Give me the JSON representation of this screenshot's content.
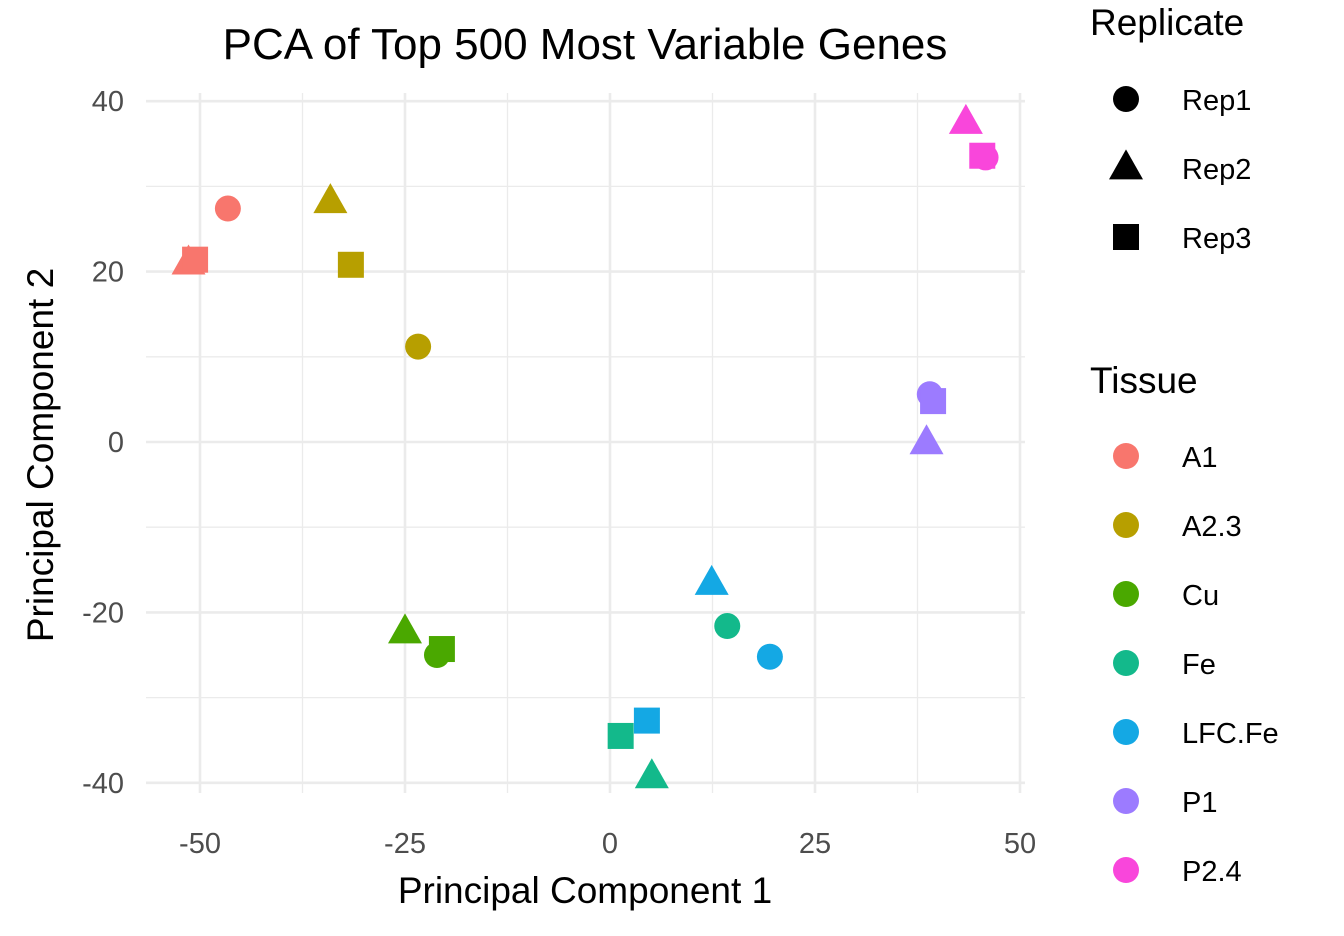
{
  "chart_data": {
    "type": "scatter",
    "title": "PCA of Top 500 Most Variable Genes",
    "xlabel": "Principal Component 1",
    "ylabel": "Principal Component 2",
    "xlim": [
      -56,
      50
    ],
    "ylim": [
      -41,
      41
    ],
    "x_ticks": [
      -50,
      -25,
      0,
      25,
      50
    ],
    "x_tick_labels": [
      "-50",
      "-25",
      "0",
      "25",
      "50"
    ],
    "y_ticks": [
      -40,
      -20,
      0,
      20,
      40
    ],
    "y_tick_labels": [
      "-40",
      "-20",
      "0",
      "20",
      "40"
    ],
    "grid": true,
    "legend_position": "right",
    "legends": {
      "shape": {
        "title": "Replicate",
        "entries": [
          {
            "label": "Rep1",
            "shape": "circle"
          },
          {
            "label": "Rep2",
            "shape": "triangle"
          },
          {
            "label": "Rep3",
            "shape": "square"
          }
        ]
      },
      "color": {
        "title": "Tissue",
        "entries": [
          {
            "label": "A1",
            "color": "#F8766D"
          },
          {
            "label": "A2.3",
            "color": "#B79F00"
          },
          {
            "label": "Cu",
            "color": "#4AA800"
          },
          {
            "label": "Fe",
            "color": "#13B98B"
          },
          {
            "label": "LFC.Fe",
            "color": "#14A8E4"
          },
          {
            "label": "P1",
            "color": "#9C7BFF"
          },
          {
            "label": "P2.4",
            "color": "#F946DB"
          }
        ]
      }
    },
    "points": [
      {
        "tissue": "A1",
        "replicate": "Rep1",
        "x": -46.6,
        "y": 27.4
      },
      {
        "tissue": "A1",
        "replicate": "Rep2",
        "x": -51.4,
        "y": 21.0
      },
      {
        "tissue": "A1",
        "replicate": "Rep3",
        "x": -50.6,
        "y": 21.4
      },
      {
        "tissue": "A2.3",
        "replicate": "Rep1",
        "x": -23.4,
        "y": 11.2
      },
      {
        "tissue": "A2.3",
        "replicate": "Rep2",
        "x": -34.1,
        "y": 28.2
      },
      {
        "tissue": "A2.3",
        "replicate": "Rep3",
        "x": -31.6,
        "y": 20.8
      },
      {
        "tissue": "Cu",
        "replicate": "Rep1",
        "x": -21.1,
        "y": -25.0
      },
      {
        "tissue": "Cu",
        "replicate": "Rep2",
        "x": -25.0,
        "y": -22.3
      },
      {
        "tissue": "Cu",
        "replicate": "Rep3",
        "x": -20.5,
        "y": -24.3
      },
      {
        "tissue": "Fe",
        "replicate": "Rep1",
        "x": 14.3,
        "y": -21.6
      },
      {
        "tissue": "Fe",
        "replicate": "Rep2",
        "x": 5.1,
        "y": -39.3
      },
      {
        "tissue": "Fe",
        "replicate": "Rep3",
        "x": 1.3,
        "y": -34.5
      },
      {
        "tissue": "LFC.Fe",
        "replicate": "Rep1",
        "x": 19.5,
        "y": -25.2
      },
      {
        "tissue": "LFC.Fe",
        "replicate": "Rep2",
        "x": 12.4,
        "y": -16.6
      },
      {
        "tissue": "LFC.Fe",
        "replicate": "Rep3",
        "x": 4.5,
        "y": -32.7
      },
      {
        "tissue": "P1",
        "replicate": "Rep1",
        "x": 39.0,
        "y": 5.6
      },
      {
        "tissue": "P1",
        "replicate": "Rep2",
        "x": 38.6,
        "y": -0.1
      },
      {
        "tissue": "P1",
        "replicate": "Rep3",
        "x": 39.4,
        "y": 4.8
      },
      {
        "tissue": "P2.4",
        "replicate": "Rep1",
        "x": 45.8,
        "y": 33.4
      },
      {
        "tissue": "P2.4",
        "replicate": "Rep2",
        "x": 43.4,
        "y": 37.5
      },
      {
        "tissue": "P2.4",
        "replicate": "Rep3",
        "x": 45.4,
        "y": 33.6
      }
    ]
  }
}
